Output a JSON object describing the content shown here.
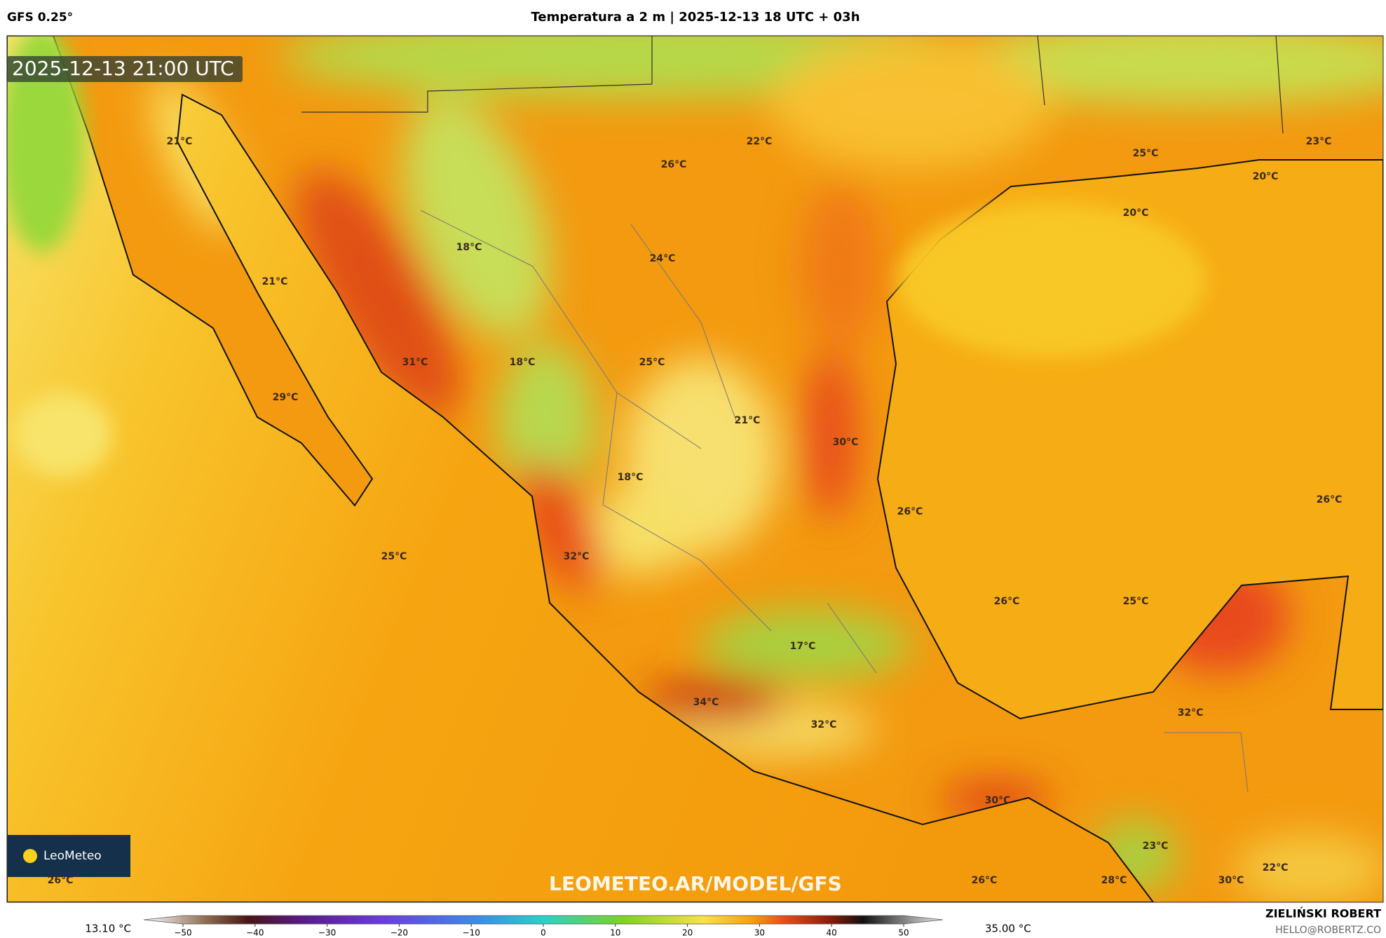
{
  "header": {
    "model": "GFS 0.25°",
    "title": "Temperatura a 2 m | 2025-12-13 18 UTC + 03h"
  },
  "map": {
    "timestamp": "2025-12-13 21:00 UTC",
    "labels": [
      "21°C",
      "22°C",
      "26°C",
      "25°C",
      "23°C",
      "20°C",
      "20°C",
      "18°C",
      "24°C",
      "21°C",
      "31°C",
      "18°C",
      "25°C",
      "29°C",
      "21°C",
      "30°C",
      "18°C",
      "26°C",
      "26°C",
      "25°C",
      "32°C",
      "26°C",
      "25°C",
      "17°C",
      "34°C",
      "32°C",
      "32°C",
      "30°C",
      "23°C",
      "22°C",
      "26°C",
      "26°C",
      "28°C",
      "30°C"
    ],
    "watermark": "LEOMETEO.AR/MODEL/GFS",
    "logo": "LeoMeteo"
  },
  "colorbar": {
    "min_label": "13.10 °C",
    "max_label": "35.00 °C",
    "xlim": [
      -50,
      50
    ],
    "xticks": [
      {
        "value": -50,
        "label": "−50"
      },
      {
        "value": -40,
        "label": "−40"
      },
      {
        "value": -30,
        "label": "−30"
      },
      {
        "value": -20,
        "label": "−20"
      },
      {
        "value": -10,
        "label": "−10"
      },
      0,
      10,
      20,
      30,
      40,
      50
    ]
  },
  "footer": {
    "author": "ZIELIŃSKI ROBERT",
    "contact": "HELLO@ROBERTZ.CO"
  }
}
